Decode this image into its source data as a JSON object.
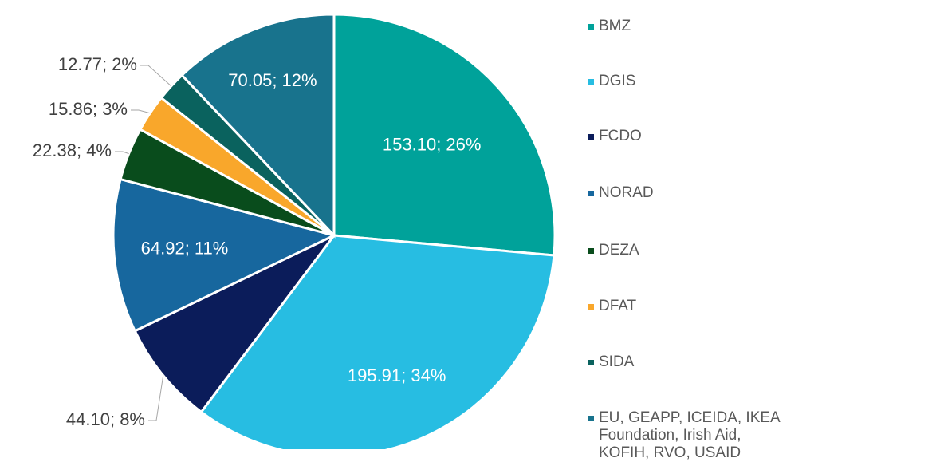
{
  "chart_data": {
    "type": "pie",
    "categories": [
      "BMZ",
      "DGIS",
      "FCDO",
      "NORAD",
      "DEZA",
      "DFAT",
      "SIDA",
      "EU, GEAPP, ICEIDA, IKEA Foundation, Irish Aid, KOFIH, RVO, USAID"
    ],
    "values": [
      153.1,
      195.91,
      44.1,
      64.92,
      22.38,
      15.86,
      12.77,
      70.05
    ],
    "value_labels": [
      "153.10; 26%",
      "195.91; 34%",
      "44.10; 8%",
      "64.92; 11%",
      "22.38; 4%",
      "15.86; 3%",
      "12.77; 2%",
      "70.05; 12%"
    ],
    "colors": [
      "#00a29a",
      "#27bde2",
      "#0b1c5a",
      "#17679e",
      "#094c1c",
      "#f9a72b",
      "#0a625e",
      "#18738d"
    ],
    "legend": "right"
  }
}
